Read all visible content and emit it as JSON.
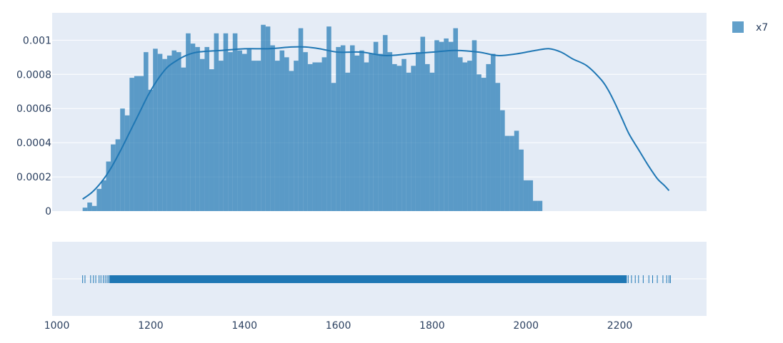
{
  "chart_data": {
    "type": "histogram",
    "legend": {
      "placement": "top-right",
      "entries": [
        {
          "name": "x7",
          "color": "#1f77b4"
        }
      ]
    },
    "style": {
      "plot_bg": "#e5ecf6",
      "grid": true,
      "grid_color": "#ffffff",
      "bar_color": "#1f77b4",
      "bar_opacity": 0.7,
      "curve_color": "#1f77b4",
      "rug_color": "#1f77b4"
    },
    "x_axis": {
      "range": [
        990,
        2385
      ],
      "ticks": [
        1000,
        1200,
        1400,
        1600,
        1800,
        2000,
        2200
      ],
      "tick_labels": [
        "1000",
        "1200",
        "1400",
        "1600",
        "1800",
        "2000",
        "2200"
      ]
    },
    "y_axis": {
      "range": [
        0,
        0.00116
      ],
      "ticks": [
        0,
        0.0002,
        0.0004,
        0.0006,
        0.0008,
        0.001
      ],
      "tick_labels": [
        "0",
        "0.0002",
        "0.0004",
        "0.0006",
        "0.0008",
        "0.001"
      ]
    },
    "histogram": {
      "bin_start": 1055,
      "bin_size": 10,
      "values": [
        2e-05,
        5e-05,
        3e-05,
        0.00013,
        0.00018,
        0.00029,
        0.00039,
        0.00042,
        0.0006,
        0.00056,
        0.00078,
        0.00079,
        0.00079,
        0.00093,
        0.00071,
        0.00095,
        0.00092,
        0.00089,
        0.00091,
        0.00094,
        0.00093,
        0.00084,
        0.00104,
        0.00098,
        0.00096,
        0.00089,
        0.00096,
        0.00083,
        0.00104,
        0.00088,
        0.00104,
        0.00093,
        0.00104,
        0.00094,
        0.00092,
        0.00095,
        0.00088,
        0.00088,
        0.00109,
        0.00108,
        0.00097,
        0.00088,
        0.00094,
        0.0009,
        0.00082,
        0.00088,
        0.00107,
        0.00093,
        0.00086,
        0.00087,
        0.00087,
        0.0009,
        0.00108,
        0.00075,
        0.00096,
        0.00097,
        0.00081,
        0.00097,
        0.00091,
        0.00094,
        0.00087,
        0.00092,
        0.00099,
        0.00092,
        0.00103,
        0.00093,
        0.00086,
        0.00085,
        0.00089,
        0.00081,
        0.00085,
        0.00093,
        0.00102,
        0.00086,
        0.00081,
        0.001,
        0.00099,
        0.00101,
        0.00099,
        0.00107,
        0.0009,
        0.00087,
        0.00088,
        0.001,
        0.0008,
        0.00078,
        0.00086,
        0.00092,
        0.00075,
        0.00059,
        0.00044,
        0.00044,
        0.00047,
        0.00036,
        0.00018,
        0.00018,
        6e-05,
        6e-05
      ]
    },
    "density_curve": {
      "x": [
        1055,
        1075,
        1095,
        1115,
        1135,
        1155,
        1175,
        1195,
        1215,
        1235,
        1255,
        1275,
        1300,
        1350,
        1400,
        1450,
        1500,
        1530,
        1560,
        1600,
        1650,
        1700,
        1750,
        1800,
        1850,
        1900,
        1940,
        1980,
        2020,
        2050,
        2075,
        2100,
        2130,
        2160,
        2175,
        2190,
        2205,
        2220,
        2240,
        2260,
        2280,
        2295,
        2305
      ],
      "y": [
        7e-05,
        0.00011,
        0.00017,
        0.00025,
        0.00035,
        0.00046,
        0.00057,
        0.00068,
        0.00077,
        0.00084,
        0.00088,
        0.00091,
        0.00093,
        0.00094,
        0.00095,
        0.00095,
        0.00096,
        0.00096,
        0.00095,
        0.00093,
        0.00093,
        0.00091,
        0.00092,
        0.00093,
        0.00094,
        0.00093,
        0.00091,
        0.00092,
        0.00094,
        0.00095,
        0.00093,
        0.00089,
        0.00085,
        0.00077,
        0.00071,
        0.00063,
        0.00054,
        0.00045,
        0.00036,
        0.00027,
        0.00019,
        0.00015,
        0.00012
      ]
    },
    "rug": {
      "x_min": 1055,
      "x_max": 2308
    }
  }
}
